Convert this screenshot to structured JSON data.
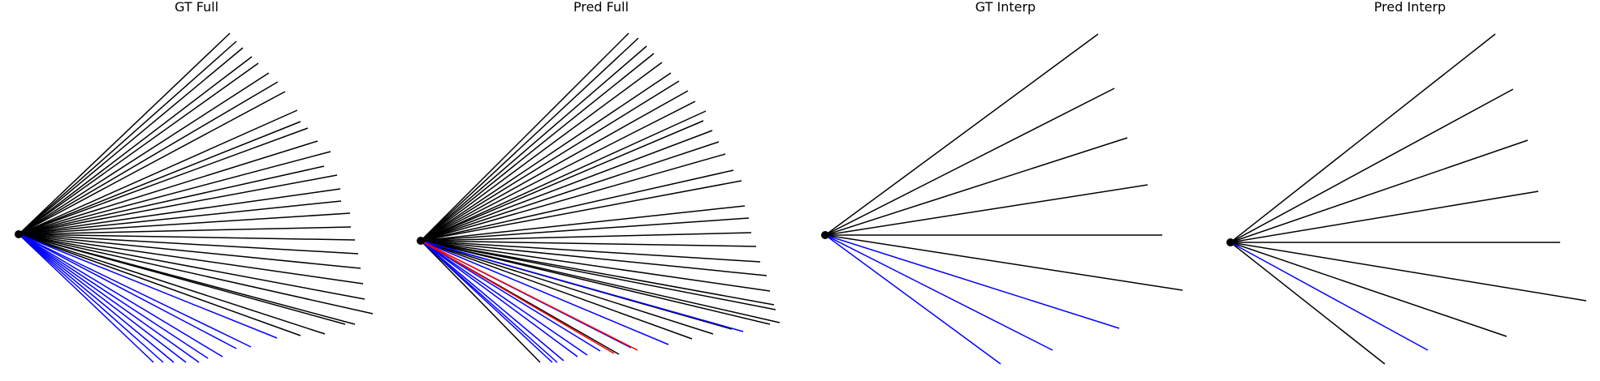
{
  "colors": {
    "background": "#ffffff",
    "default_line": "#000000",
    "blue_line": "#0000ff",
    "red_line": "#ff0000",
    "origin_dot": "#000000"
  },
  "chart_data": [
    {
      "type": "diagram",
      "title": "GT Full",
      "grid": false,
      "axes_visible": false,
      "description_values": {
        "ray_count": 34,
        "blue_ray_count": 10,
        "red_ray_count": 0
      }
    },
    {
      "type": "diagram",
      "title": "Pred Full",
      "grid": false,
      "axes_visible": false,
      "description_values": {
        "ray_count": 40,
        "blue_ray_count": 9,
        "red_ray_count": 2
      }
    },
    {
      "type": "diagram",
      "title": "GT Interp",
      "grid": false,
      "axes_visible": false,
      "description_values": {
        "ray_count": 8,
        "blue_ray_count": 3,
        "red_ray_count": 0
      }
    },
    {
      "type": "diagram",
      "title": "Pred Interp",
      "grid": false,
      "axes_visible": false,
      "description_values": {
        "ray_count": 8,
        "blue_ray_count": 1,
        "red_ray_count": 0
      }
    }
  ]
}
